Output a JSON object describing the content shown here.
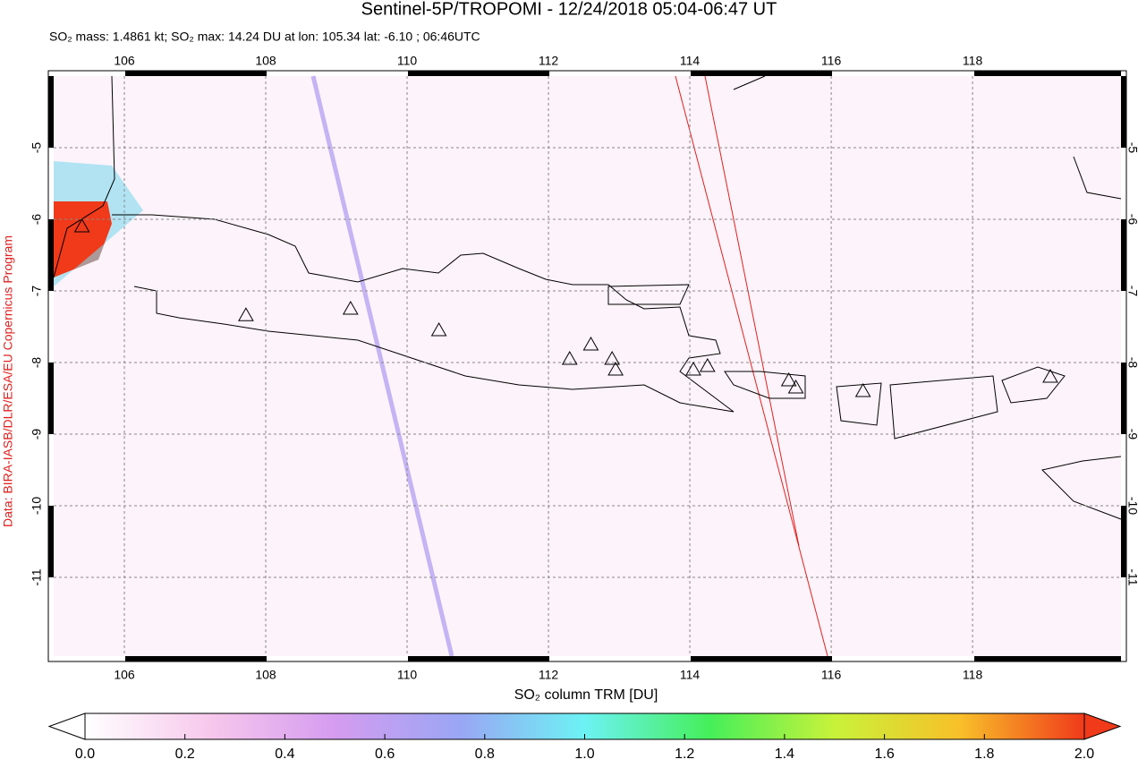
{
  "chart_data": {
    "type": "map",
    "title": "Sentinel-5P/TROPOMI - 12/24/2018 05:04-06:47 UT",
    "subtitle": "SO₂ mass: 1.4861 kt; SO₂ max: 14.24 DU at lon: 105.34 lat: -6.10 ; 06:46UTC",
    "xlabel": "SO₂ column TRM [DU]",
    "credit": "Data: BIRA-IASB/DLR/ESA/EU Copernicus Program",
    "xlim": [
      105,
      120.1
    ],
    "ylim": [
      -12.1,
      -4
    ],
    "xticks": [
      106,
      108,
      110,
      112,
      114,
      116,
      118
    ],
    "yticks": [
      -5,
      -6,
      -7,
      -8,
      -9,
      -10,
      -11
    ],
    "grid": true,
    "markers": {
      "x": [
        105.4,
        107.72,
        109.2,
        110.45,
        112.3,
        112.6,
        112.9,
        112.95,
        114.05,
        114.25,
        115.4,
        115.5,
        116.45,
        119.1
      ],
      "y": [
        -6.1,
        -7.34,
        -7.25,
        -7.55,
        -7.95,
        -7.75,
        -7.95,
        -8.1,
        -8.1,
        -8.05,
        -8.25,
        -8.35,
        -8.4,
        -8.2
      ]
    },
    "colorbar": {
      "lim": [
        0,
        2
      ],
      "ticks": [
        {
          "value": 0,
          "label": "0.0"
        },
        {
          "value": 0.2,
          "label": "0.2"
        },
        {
          "value": 0.4,
          "label": "0.4"
        },
        {
          "value": 0.6,
          "label": "0.6"
        },
        {
          "value": 0.8,
          "label": "0.8"
        },
        {
          "value": 1,
          "label": "1.0"
        },
        {
          "value": 1.2,
          "label": "1.2"
        },
        {
          "value": 1.4,
          "label": "1.4"
        },
        {
          "value": 1.6,
          "label": "1.6"
        },
        {
          "value": 1.8,
          "label": "1.8"
        },
        {
          "value": 2,
          "label": "2.0"
        }
      ],
      "colors": [
        "#ffffff",
        "#f7c8ec",
        "#d59cf0",
        "#9aa6f4",
        "#6cf2f4",
        "#45ef5a",
        "#c8f23a",
        "#f8c02a",
        "#f03a1a"
      ]
    }
  }
}
